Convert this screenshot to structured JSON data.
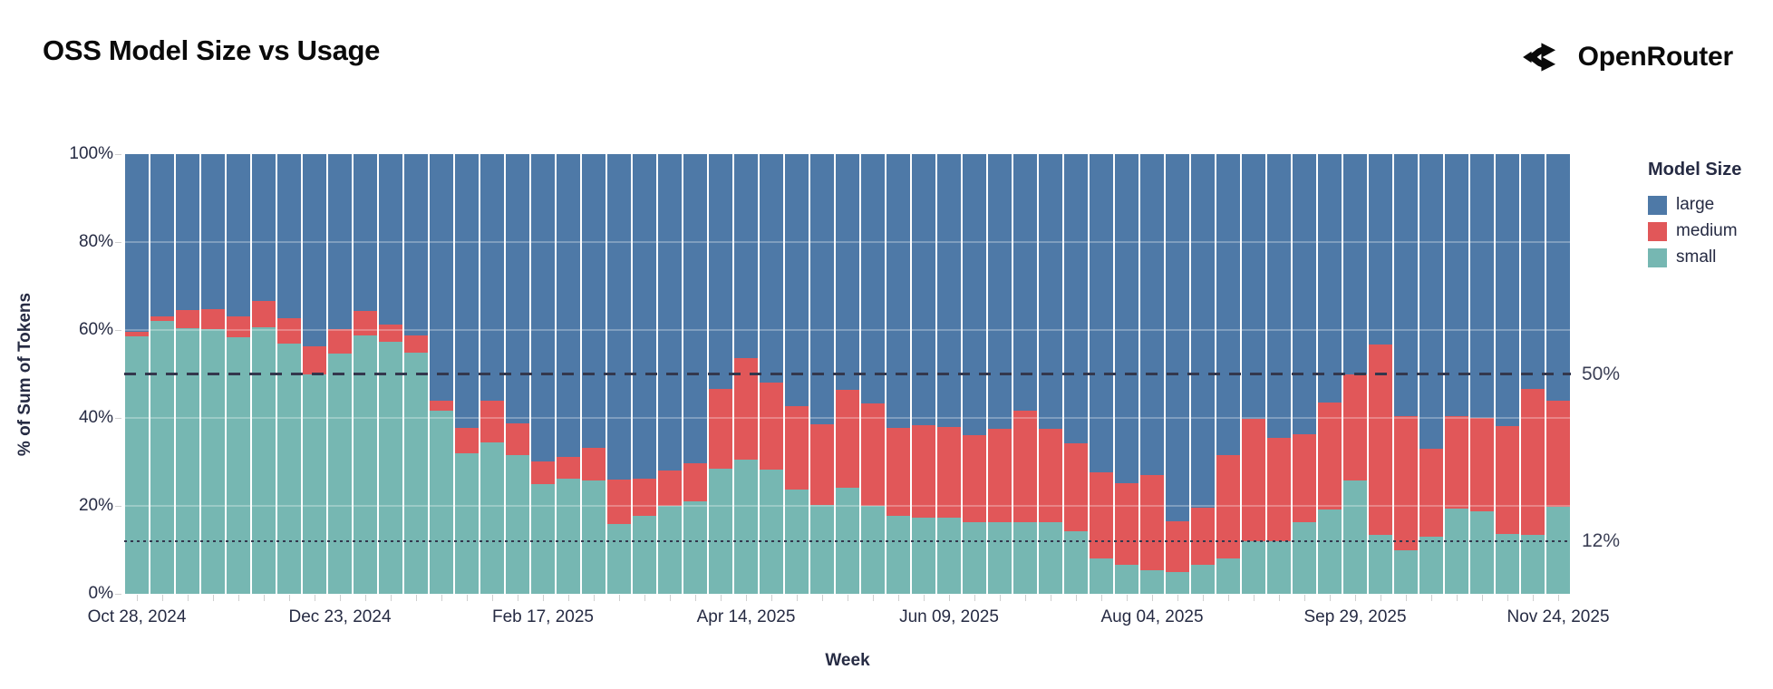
{
  "header": {
    "title": "OSS Model Size vs Usage",
    "brand": "OpenRouter"
  },
  "chart_data": {
    "type": "bar",
    "stacked": true,
    "title": "OSS Model Size vs Usage",
    "xlabel": "Week",
    "ylabel": "% of Sum of Tokens",
    "ylim": [
      0,
      100
    ],
    "grid": "horizontal, faint overlay at 20/40/60/80",
    "y_ticks": [
      {
        "value": 0,
        "label": "0%"
      },
      {
        "value": 20,
        "label": "20%"
      },
      {
        "value": 40,
        "label": "40%"
      },
      {
        "value": 60,
        "label": "60%"
      },
      {
        "value": 80,
        "label": "80%"
      },
      {
        "value": 100,
        "label": "100%"
      }
    ],
    "x_tick_indices": [
      0,
      8,
      16,
      24,
      32,
      40,
      48,
      56
    ],
    "x_tick_labels": [
      "Oct 28, 2024",
      "Dec 23, 2024",
      "Feb 17, 2025",
      "Apr 14, 2025",
      "Jun 09, 2025",
      "Aug 04, 2025",
      "Sep 29, 2025",
      "Nov 24, 2025"
    ],
    "categories": [
      "Oct 28, 2024",
      "Nov 04, 2024",
      "Nov 11, 2024",
      "Nov 18, 2024",
      "Nov 25, 2024",
      "Dec 02, 2024",
      "Dec 09, 2024",
      "Dec 16, 2024",
      "Dec 23, 2024",
      "Dec 30, 2024",
      "Jan 06, 2025",
      "Jan 13, 2025",
      "Jan 20, 2025",
      "Jan 27, 2025",
      "Feb 03, 2025",
      "Feb 10, 2025",
      "Feb 17, 2025",
      "Feb 24, 2025",
      "Mar 03, 2025",
      "Mar 10, 2025",
      "Mar 17, 2025",
      "Mar 24, 2025",
      "Mar 31, 2025",
      "Apr 07, 2025",
      "Apr 14, 2025",
      "Apr 21, 2025",
      "Apr 28, 2025",
      "May 05, 2025",
      "May 12, 2025",
      "May 19, 2025",
      "May 26, 2025",
      "Jun 02, 2025",
      "Jun 09, 2025",
      "Jun 16, 2025",
      "Jun 23, 2025",
      "Jun 30, 2025",
      "Jul 07, 2025",
      "Jul 14, 2025",
      "Jul 21, 2025",
      "Jul 28, 2025",
      "Aug 04, 2025",
      "Aug 11, 2025",
      "Aug 18, 2025",
      "Aug 25, 2025",
      "Sep 01, 2025",
      "Sep 08, 2025",
      "Sep 15, 2025",
      "Sep 22, 2025",
      "Sep 29, 2025",
      "Oct 06, 2025",
      "Oct 13, 2025",
      "Oct 20, 2025",
      "Oct 27, 2025",
      "Nov 03, 2025",
      "Nov 10, 2025",
      "Nov 17, 2025",
      "Nov 24, 2025"
    ],
    "stack_order_bottom_to_top": [
      "small",
      "medium",
      "large"
    ],
    "series": [
      {
        "name": "small",
        "color": "#76b7b2",
        "values": [
          58.6,
          62.0,
          60.5,
          60.3,
          58.4,
          60.7,
          57.0,
          50.0,
          54.6,
          58.8,
          57.4,
          54.8,
          41.6,
          32.0,
          34.4,
          31.6,
          25.0,
          26.1,
          25.8,
          15.8,
          17.7,
          20.1,
          21.0,
          28.5,
          30.6,
          28.2,
          23.7,
          20.3,
          24.1,
          20.1,
          17.7,
          17.4,
          17.3,
          16.3,
          16.2,
          16.3,
          16.2,
          14.2,
          8.0,
          6.5,
          5.3,
          4.9,
          6.5,
          8.0,
          12.0,
          12.0,
          16.3,
          19.2,
          25.8,
          13.5,
          9.8,
          13.0,
          19.3,
          18.7,
          13.7,
          13.5,
          19.9
        ]
      },
      {
        "name": "medium",
        "color": "#e15759",
        "values": [
          0.9,
          1.0,
          4.1,
          4.4,
          4.6,
          6.0,
          5.6,
          6.2,
          5.6,
          5.5,
          3.8,
          4.0,
          2.4,
          5.7,
          9.6,
          7.1,
          5.2,
          5.0,
          7.4,
          10.1,
          8.4,
          7.9,
          8.7,
          18.0,
          23.0,
          19.9,
          18.9,
          18.2,
          22.3,
          23.2,
          20.1,
          20.9,
          20.7,
          19.8,
          21.3,
          25.4,
          21.4,
          20.0,
          19.6,
          18.7,
          21.8,
          11.6,
          13.1,
          23.6,
          27.7,
          23.5,
          19.9,
          24.4,
          24.2,
          43.2,
          30.7,
          20.0,
          21.1,
          21.3,
          24.4,
          33.2,
          24.1
        ]
      },
      {
        "name": "large",
        "color": "#4e79a7",
        "values": [
          40.5,
          37.0,
          35.4,
          35.3,
          37.0,
          33.3,
          37.4,
          43.8,
          39.8,
          35.7,
          38.8,
          41.2,
          56.0,
          62.3,
          56.0,
          61.3,
          69.8,
          68.9,
          66.8,
          74.1,
          73.9,
          72.0,
          70.3,
          53.5,
          46.4,
          51.9,
          57.4,
          61.5,
          53.6,
          56.7,
          62.2,
          61.7,
          62.0,
          63.9,
          62.5,
          58.3,
          62.4,
          65.8,
          72.4,
          74.8,
          72.9,
          83.5,
          80.4,
          68.4,
          60.3,
          64.5,
          63.8,
          56.4,
          50.0,
          43.3,
          59.5,
          67.0,
          59.6,
          60.0,
          61.9,
          53.3,
          56.0
        ]
      }
    ],
    "reference_lines": [
      {
        "value": 50,
        "label": "50%",
        "style": "dashed"
      },
      {
        "value": 12,
        "label": "12%",
        "style": "dotted"
      }
    ],
    "legend": {
      "title": "Model Size",
      "position": "right",
      "entries": [
        {
          "label": "large",
          "color": "#4e79a7"
        },
        {
          "label": "medium",
          "color": "#e15759"
        },
        {
          "label": "small",
          "color": "#76b7b2"
        }
      ]
    }
  }
}
